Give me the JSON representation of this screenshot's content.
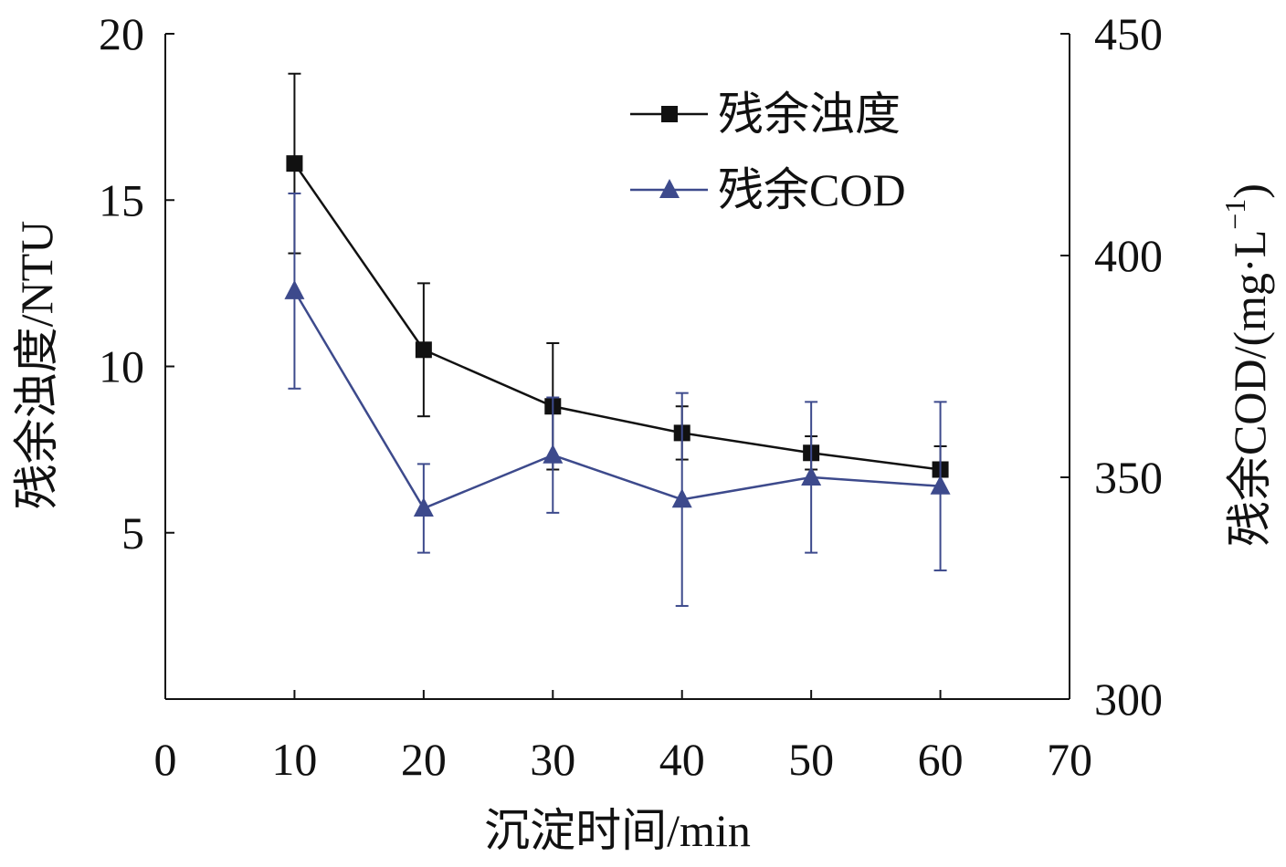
{
  "chart_data": {
    "type": "line",
    "xlabel": "沉淀时间/min",
    "ylabel_left": "残余浊度/NTU",
    "ylabel_right": "残余COD/(mg·L",
    "ylabel_right_sup": "−1",
    "ylabel_right_close": ")",
    "xlim": [
      0,
      70
    ],
    "ylim_left": [
      0,
      20
    ],
    "ylim_right": [
      300,
      450
    ],
    "x_ticks": [
      "0",
      "10",
      "20",
      "30",
      "40",
      "50",
      "60",
      "70"
    ],
    "y_left_ticks": [
      "5",
      "10",
      "15",
      "20"
    ],
    "y_right_ticks": [
      "300",
      "350",
      "400",
      "450"
    ],
    "grid": false,
    "legend_position": "top-right",
    "series": [
      {
        "name": "残余浊度",
        "axis": "left",
        "marker": "square",
        "color": "#111111",
        "x": [
          10,
          20,
          30,
          40,
          50,
          60
        ],
        "y": [
          16.1,
          10.5,
          8.8,
          8.0,
          7.4,
          6.9
        ],
        "err": [
          2.7,
          2.0,
          1.9,
          0.8,
          0.5,
          0.7
        ]
      },
      {
        "name": "残余COD",
        "axis": "right",
        "marker": "triangle",
        "color": "#3d4a8c",
        "x": [
          10,
          20,
          30,
          40,
          50,
          60
        ],
        "y": [
          392,
          343,
          355,
          345,
          350,
          348
        ],
        "err": [
          22,
          10,
          13,
          24,
          17,
          19
        ]
      }
    ]
  }
}
